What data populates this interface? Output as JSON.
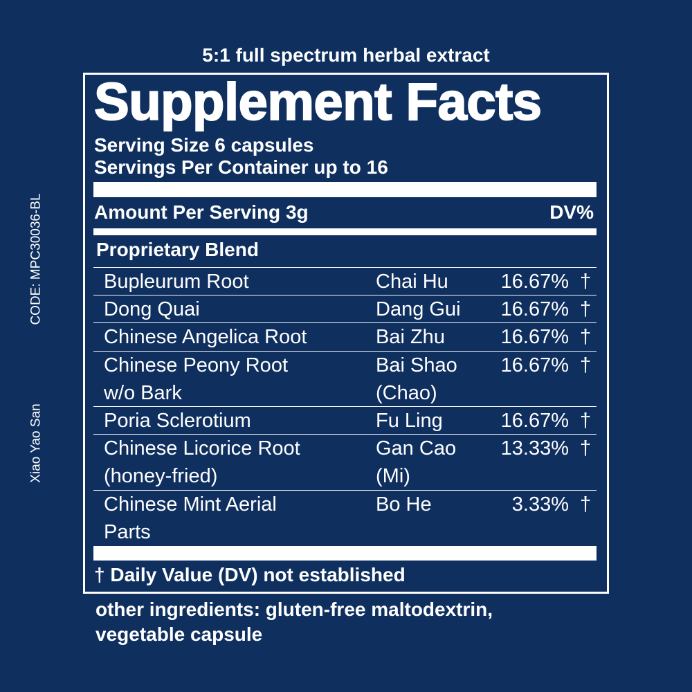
{
  "header": {
    "subtitle": "5:1 full spectrum herbal extract",
    "title": "Supplement Facts",
    "serving_size": "Serving Size 6 capsules",
    "servings_per_container": "Servings Per Container up to 16"
  },
  "amount": {
    "label": "Amount Per Serving 3g",
    "dv_header": "DV%"
  },
  "blend": {
    "title": "Proprietary Blend",
    "rows": [
      {
        "name": [
          "Bupleurum Root"
        ],
        "pinyin": [
          "Chai Hu"
        ],
        "dv": "16.67%",
        "mark": "†"
      },
      {
        "name": [
          "Dong Quai"
        ],
        "pinyin": [
          "Dang Gui"
        ],
        "dv": "16.67%",
        "mark": "†"
      },
      {
        "name": [
          "Chinese Angelica Root"
        ],
        "pinyin": [
          "Bai Zhu"
        ],
        "dv": "16.67%",
        "mark": "†"
      },
      {
        "name": [
          "Chinese Peony Root",
          "w/o Bark"
        ],
        "pinyin": [
          "Bai Shao",
          "(Chao)"
        ],
        "dv": "16.67%",
        "mark": "†"
      },
      {
        "name": [
          "Poria Sclerotium"
        ],
        "pinyin": [
          "Fu Ling"
        ],
        "dv": "16.67%",
        "mark": "†"
      },
      {
        "name": [
          "Chinese Licorice Root",
          "(honey-fried)"
        ],
        "pinyin": [
          "Gan Cao",
          "(Mi)"
        ],
        "dv": "13.33%",
        "mark": "†"
      },
      {
        "name": [
          "Chinese Mint Aerial",
          "Parts"
        ],
        "pinyin": [
          "Bo He"
        ],
        "dv": "3.33%",
        "mark": "†"
      }
    ]
  },
  "footnote": "† Daily Value (DV) not established",
  "other_ingredients": [
    "other ingredients: gluten-free maltodextrin,",
    "vegetable capsule"
  ],
  "side": {
    "code": "CODE: MPC30036-BL",
    "product": "Xiao Yao San"
  }
}
